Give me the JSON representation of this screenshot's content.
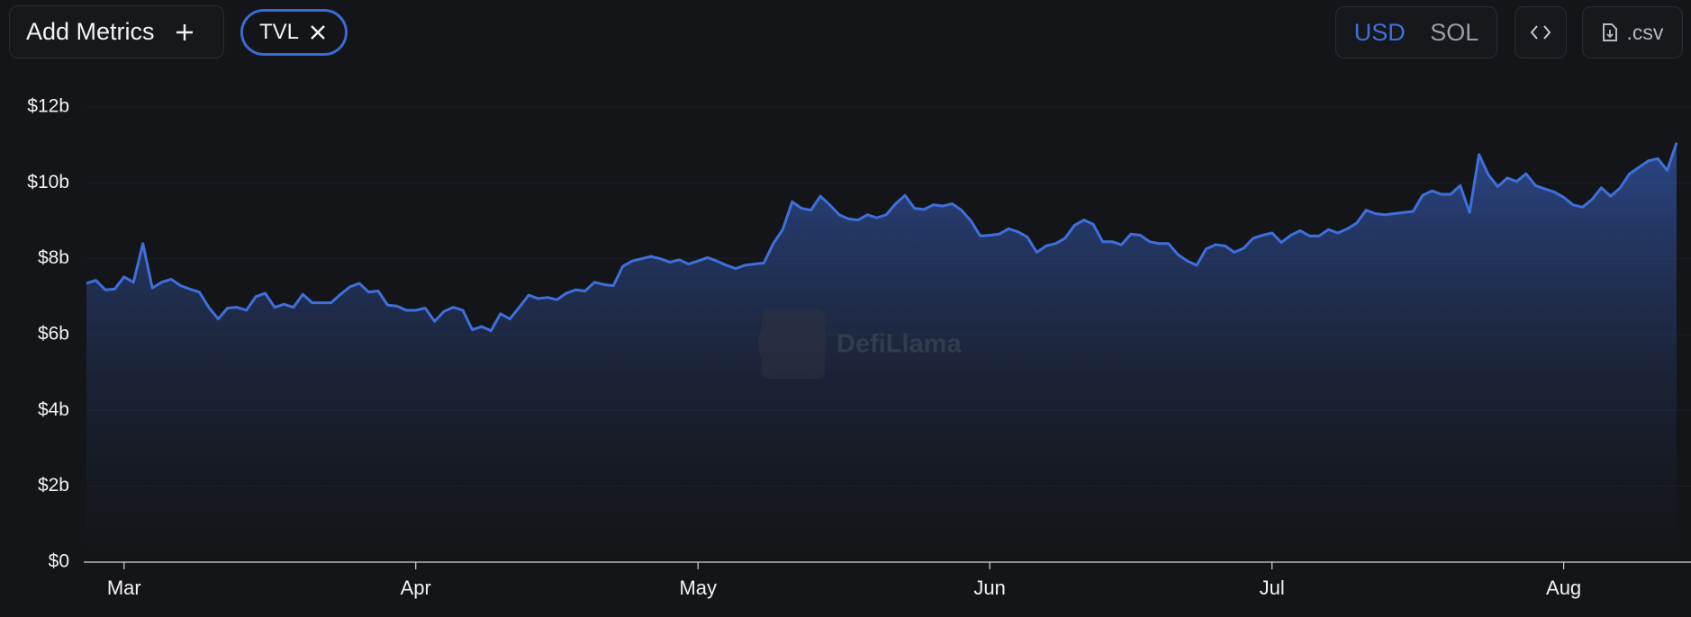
{
  "toolbar": {
    "add_metrics": "Add Metrics",
    "metric": "TVL",
    "currencies": [
      "USD",
      "SOL"
    ],
    "csv": ".csv"
  },
  "watermark": "DefiLlama",
  "chart_data": {
    "type": "line",
    "categories": [
      null,
      null,
      null,
      null,
      "Mar",
      null,
      null,
      null,
      null,
      null,
      null,
      null,
      null,
      null,
      null,
      null,
      null,
      null,
      null,
      null,
      null,
      null,
      null,
      null,
      null,
      null,
      null,
      null,
      null,
      null,
      null,
      null,
      null,
      null,
      null,
      "Apr",
      null,
      null,
      null,
      null,
      null,
      null,
      null,
      null,
      null,
      null,
      null,
      null,
      null,
      null,
      null,
      null,
      null,
      null,
      null,
      null,
      null,
      null,
      null,
      null,
      null,
      null,
      null,
      null,
      null,
      "May",
      null,
      null,
      null,
      null,
      null,
      null,
      null,
      null,
      null,
      null,
      null,
      null,
      null,
      null,
      null,
      null,
      null,
      null,
      null,
      null,
      null,
      null,
      null,
      null,
      null,
      null,
      null,
      null,
      null,
      null,
      "Jun",
      null,
      null,
      null,
      null,
      null,
      null,
      null,
      null,
      null,
      null,
      null,
      null,
      null,
      null,
      null,
      null,
      null,
      null,
      null,
      null,
      null,
      null,
      null,
      null,
      null,
      null,
      null,
      null,
      null,
      "Jul",
      null,
      null,
      null,
      null,
      null,
      null,
      null,
      null,
      null,
      null,
      null,
      null,
      null,
      null,
      null,
      null,
      null,
      null,
      null,
      null,
      null,
      null,
      null,
      null,
      null,
      null,
      null,
      null,
      null,
      null,
      "Aug",
      null,
      null,
      null,
      null,
      null,
      null,
      null,
      null,
      null,
      null,
      null,
      null
    ],
    "series": [
      {
        "name": "TVL",
        "color": "#3f6fdc",
        "values": [
          7.35,
          7.43,
          7.18,
          7.2,
          7.52,
          7.38,
          8.4,
          7.23,
          7.38,
          7.46,
          7.29,
          7.2,
          7.12,
          6.72,
          6.41,
          6.7,
          6.72,
          6.64,
          7.0,
          7.09,
          6.72,
          6.8,
          6.72,
          7.06,
          6.84,
          6.84,
          6.84,
          7.06,
          7.26,
          7.35,
          7.12,
          7.15,
          6.78,
          6.75,
          6.64,
          6.64,
          6.7,
          6.35,
          6.61,
          6.72,
          6.64,
          6.13,
          6.21,
          6.1,
          6.55,
          6.41,
          6.72,
          7.04,
          6.95,
          6.98,
          6.92,
          7.09,
          7.18,
          7.15,
          7.38,
          7.32,
          7.29,
          7.8,
          7.94,
          8.0,
          8.06,
          8.0,
          7.91,
          7.97,
          7.86,
          7.94,
          8.03,
          7.94,
          7.83,
          7.74,
          7.83,
          7.86,
          7.89,
          8.4,
          8.77,
          9.5,
          9.33,
          9.28,
          9.65,
          9.42,
          9.16,
          9.05,
          9.02,
          9.16,
          9.08,
          9.16,
          9.45,
          9.67,
          9.33,
          9.3,
          9.42,
          9.39,
          9.45,
          9.28,
          9.0,
          8.6,
          8.62,
          8.65,
          8.79,
          8.71,
          8.57,
          8.17,
          8.34,
          8.4,
          8.54,
          8.88,
          9.02,
          8.91,
          8.45,
          8.45,
          8.37,
          8.65,
          8.62,
          8.45,
          8.4,
          8.4,
          8.11,
          7.94,
          7.83,
          8.26,
          8.37,
          8.34,
          8.17,
          8.28,
          8.54,
          8.62,
          8.68,
          8.43,
          8.62,
          8.74,
          8.6,
          8.6,
          8.77,
          8.68,
          8.79,
          8.94,
          9.28,
          9.19,
          9.16,
          9.19,
          9.22,
          9.25,
          9.67,
          9.79,
          9.7,
          9.7,
          9.93,
          9.22,
          10.75,
          10.21,
          9.9,
          10.13,
          10.04,
          10.24,
          9.93,
          9.84,
          9.76,
          9.62,
          9.42,
          9.36,
          9.56,
          9.87,
          9.65,
          9.87,
          10.24,
          10.41,
          10.58,
          10.64,
          10.33,
          11.06
        ]
      }
    ],
    "ylim": [
      0,
      12
    ],
    "yticks": [
      {
        "value": 0,
        "label": "$0"
      },
      {
        "value": 2,
        "label": "$2b"
      },
      {
        "value": 4,
        "label": "$4b"
      },
      {
        "value": 6,
        "label": "$6b"
      },
      {
        "value": 8,
        "label": "$8b"
      },
      {
        "value": 10,
        "label": "$10b"
      },
      {
        "value": 12,
        "label": "$12b"
      }
    ],
    "grid": true
  }
}
